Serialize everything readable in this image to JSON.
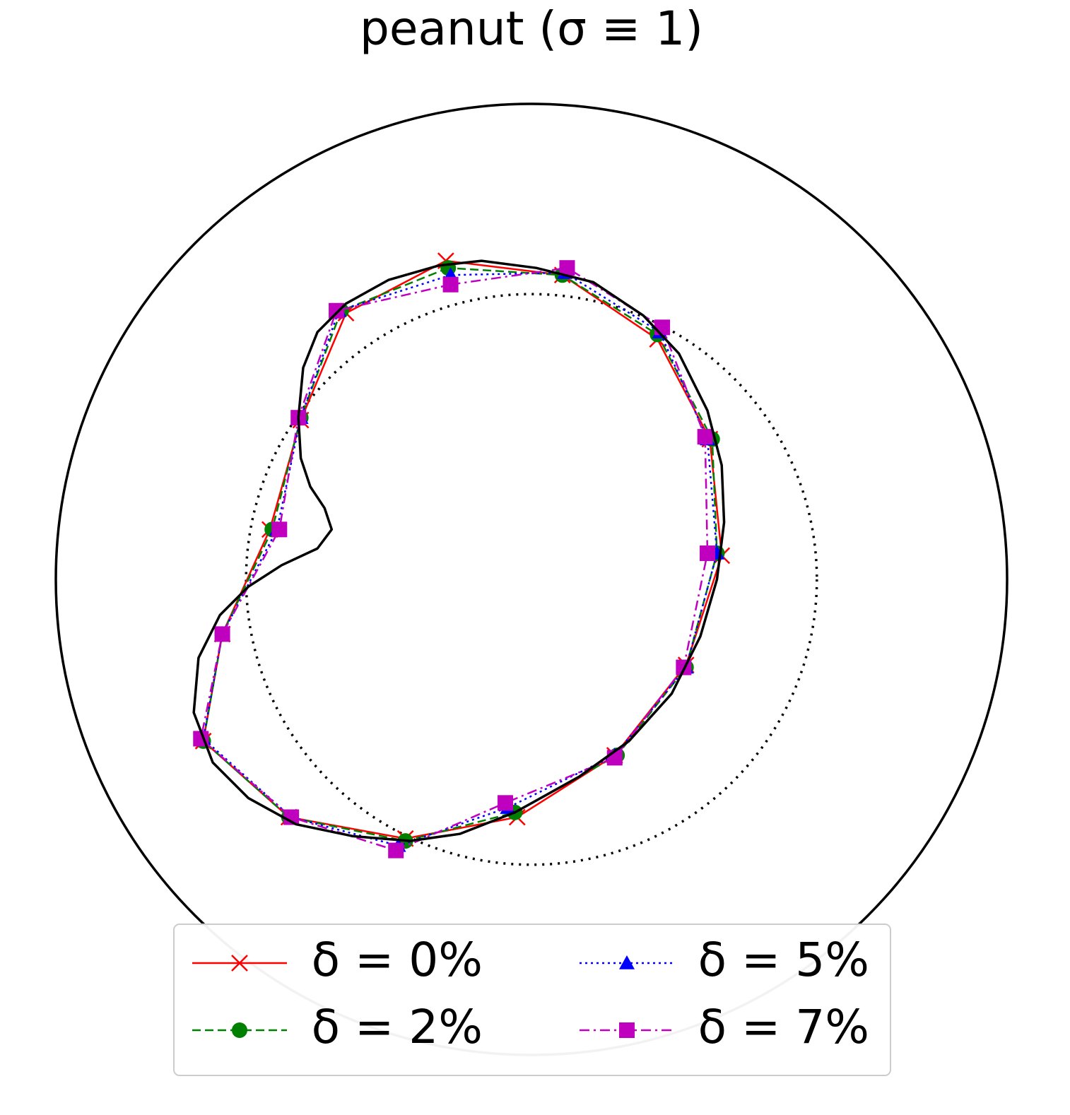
{
  "chart_data": {
    "type": "line",
    "title": "peanut (σ ≡ 1)",
    "xlim": [
      -2,
      2
    ],
    "ylim": [
      -2,
      2
    ],
    "legend": "lower center",
    "circles": [
      {
        "r": 2,
        "style": "solid"
      },
      {
        "r": 1.2,
        "style": "dotted"
      }
    ],
    "curve": {
      "color": "#000000",
      "x": [
        -0.98,
        -0.96,
        -0.9,
        -0.78,
        -0.6,
        -0.39,
        -0.21,
        0.02,
        0.26,
        0.47,
        0.62,
        0.74,
        0.8,
        0.81,
        0.78,
        0.71,
        0.59,
        0.41,
        0.2,
        -0.07,
        -0.3,
        -0.51,
        -0.75,
        -0.99,
        -1.19,
        -1.34,
        -1.42,
        -1.4,
        -1.31,
        -1.19,
        -1.05,
        -0.9,
        -0.84,
        -0.87,
        -0.93,
        -0.97,
        -0.98
      ],
      "values": [
        0.68,
        0.89,
        1.04,
        1.16,
        1.26,
        1.32,
        1.34,
        1.31,
        1.25,
        1.11,
        0.95,
        0.71,
        0.48,
        0.24,
        0,
        -0.24,
        -0.48,
        -0.68,
        -0.83,
        -0.98,
        -1.07,
        -1.1,
        -1.08,
        -1.03,
        -0.92,
        -0.77,
        -0.56,
        -0.33,
        -0.15,
        -0.03,
        0.06,
        0.13,
        0.21,
        0.3,
        0.39,
        0.51,
        0.68
      ]
    },
    "series": [
      {
        "name": "δ = 0%",
        "color": "#ff0000",
        "marker": "x",
        "dash": "solid",
        "x": [
          -0.36,
          -0.78,
          -0.97,
          -1.1,
          -1.3,
          -1.38,
          -1.02,
          -0.53,
          -0.06,
          0.35,
          0.65,
          0.8,
          0.75,
          0.53,
          0.13
        ],
        "values": [
          1.34,
          1.12,
          0.67,
          0.21,
          -0.23,
          -0.68,
          -1.0,
          -1.09,
          -1.0,
          -0.74,
          -0.36,
          0.1,
          0.59,
          1.01,
          1.28
        ]
      },
      {
        "name": "δ = 2%",
        "color": "#008000",
        "marker": "o",
        "dash": "dashed",
        "x": [
          -0.35,
          -0.8,
          -0.97,
          -1.09,
          -1.3,
          -1.38,
          -1.02,
          -0.53,
          -0.07,
          0.36,
          0.65,
          0.78,
          0.76,
          0.53,
          0.13
        ],
        "values": [
          1.31,
          1.13,
          0.68,
          0.21,
          -0.23,
          -0.68,
          -1.0,
          -1.1,
          -0.98,
          -0.74,
          -0.37,
          0.11,
          0.59,
          1.03,
          1.28
        ]
      },
      {
        "name": "δ = 5%",
        "color": "#0000ff",
        "marker": "^",
        "dash": "dotted",
        "x": [
          -0.34,
          -0.81,
          -0.97,
          -1.07,
          -1.3,
          -1.38,
          -1.01,
          -0.56,
          -0.1,
          0.35,
          0.65,
          0.78,
          0.74,
          0.54,
          0.14
        ],
        "values": [
          1.28,
          1.13,
          0.68,
          0.21,
          -0.23,
          -0.67,
          -1.0,
          -1.12,
          -0.96,
          -0.74,
          -0.37,
          0.11,
          0.59,
          1.04,
          1.29
        ]
      },
      {
        "name": "δ = 7%",
        "color": "#bf00bf",
        "marker": "s",
        "dash": "dashdot",
        "x": [
          -0.34,
          -0.82,
          -0.98,
          -1.06,
          -1.3,
          -1.39,
          -1.01,
          -0.57,
          -0.11,
          0.35,
          0.64,
          0.74,
          0.73,
          0.55,
          0.15
        ],
        "values": [
          1.24,
          1.13,
          0.68,
          0.21,
          -0.23,
          -0.67,
          -1.0,
          -1.14,
          -0.94,
          -0.75,
          -0.37,
          0.11,
          0.6,
          1.06,
          1.31
        ]
      }
    ]
  }
}
